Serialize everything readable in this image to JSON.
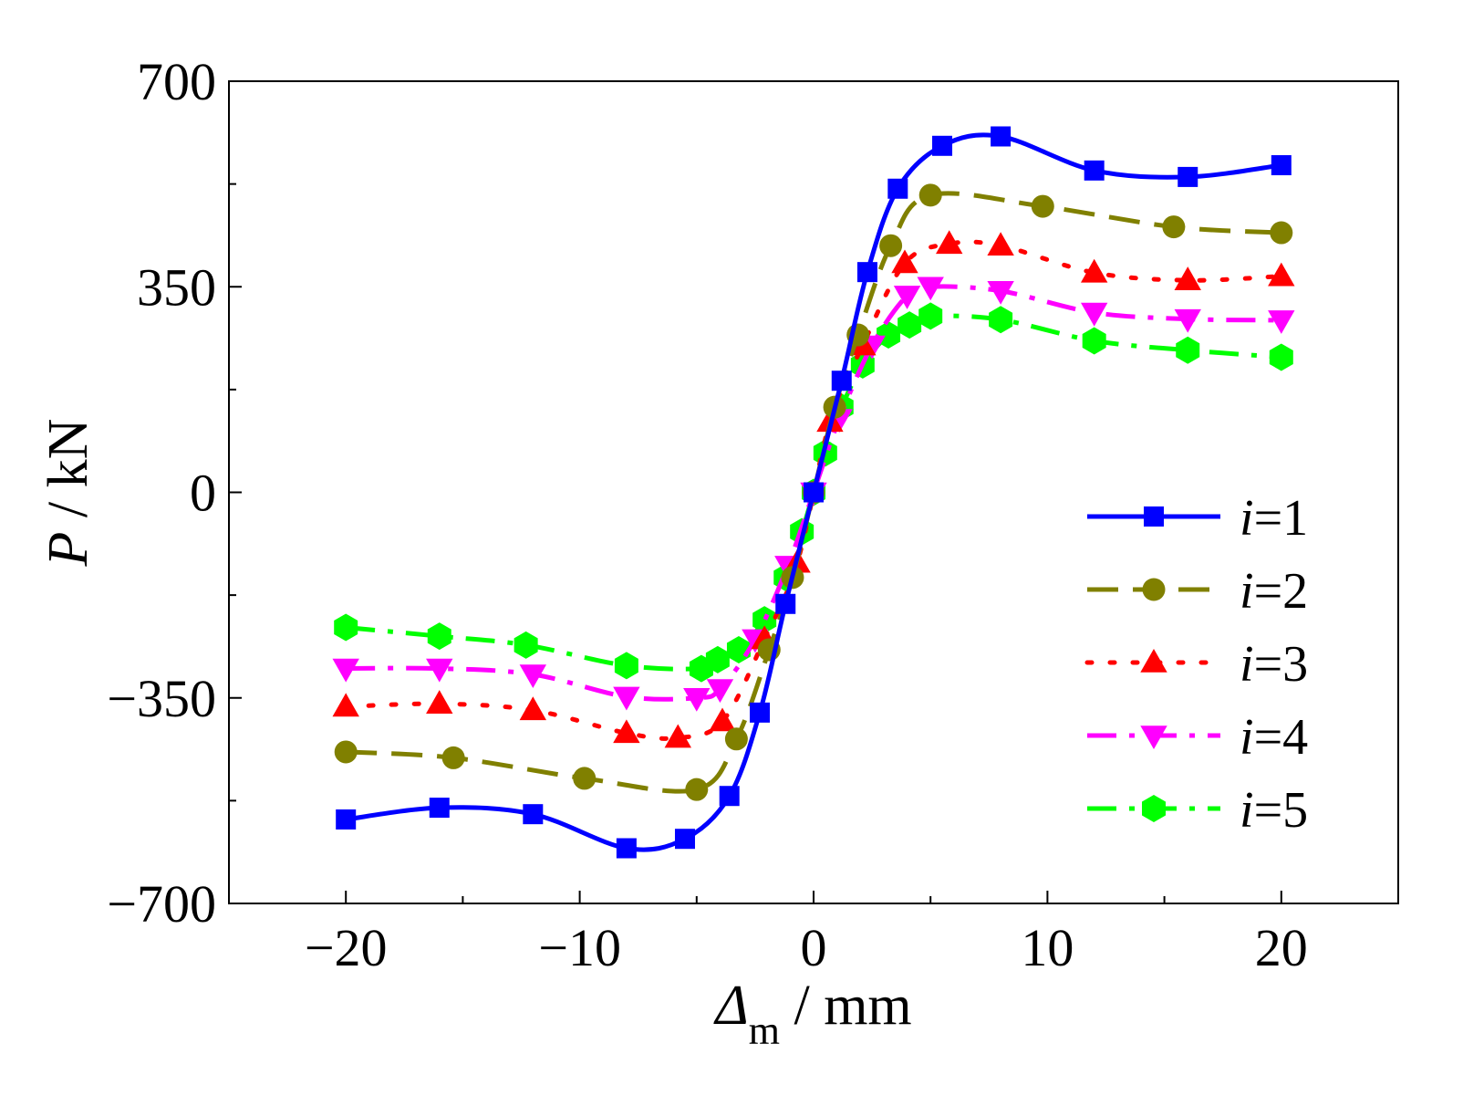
{
  "chart_data": {
    "type": "line",
    "xlabel": "Δm / mm",
    "xlabel_symbol": "Δ",
    "xlabel_subscript": "m",
    "xlabel_unit": " / mm",
    "ylabel": "P / kN",
    "ylabel_symbol": "P",
    "ylabel_unit": " / kN",
    "xlim": [
      -25,
      25
    ],
    "ylim": [
      -700,
      700
    ],
    "xticks": [
      -20,
      -10,
      0,
      10,
      20
    ],
    "xtick_labels": [
      "−20",
      "−10",
      "0",
      "10",
      "20"
    ],
    "yticks": [
      -700,
      -350,
      0,
      350,
      700
    ],
    "ytick_labels": [
      "−700",
      "−350",
      "0",
      "350",
      "700"
    ],
    "legend_position": "lower-right",
    "series": [
      {
        "name": "i=1",
        "legend_var": "i",
        "legend_value": "=1",
        "color": "#0000ff",
        "marker": "square",
        "line": "solid",
        "x": [
          -20,
          -16,
          -12,
          -8,
          -5.5,
          -3.6,
          -2.3,
          -1.2,
          0,
          1.2,
          2.3,
          3.6,
          5.5,
          8,
          12,
          16,
          20
        ],
        "y": [
          -557,
          -537,
          -548,
          -606,
          -590,
          -517,
          -375,
          -190,
          0,
          190,
          375,
          517,
          590,
          606,
          548,
          537,
          557
        ]
      },
      {
        "name": "i=2",
        "legend_var": "i",
        "legend_value": "=2",
        "color": "#808000",
        "marker": "circle",
        "line": "dashed",
        "x": [
          -20,
          -15.4,
          -9.8,
          -5,
          -3.3,
          -1.9,
          -0.9,
          0,
          0.9,
          1.9,
          3.3,
          5,
          9.8,
          15.4,
          20
        ],
        "y": [
          -442,
          -452,
          -487,
          -506,
          -420,
          -268,
          -145,
          0,
          145,
          268,
          420,
          506,
          487,
          452,
          442
        ]
      },
      {
        "name": "i=3",
        "legend_var": "i",
        "legend_value": "=3",
        "color": "#ff0000",
        "marker": "triangle-up",
        "line": "dotted",
        "x": [
          -20,
          -16,
          -12,
          -8,
          -5.8,
          -3.9,
          -2.1,
          -0.7,
          0.7,
          2.1,
          3.9,
          5.8,
          8,
          12,
          16,
          20
        ],
        "y": [
          -365,
          -360,
          -371,
          -410,
          -418,
          -390,
          -250,
          -120,
          120,
          250,
          390,
          423,
          420,
          374,
          361,
          368
        ]
      },
      {
        "name": "i=4",
        "legend_var": "i",
        "legend_value": "=4",
        "color": "#ff00ff",
        "marker": "triangle-down",
        "line": "dash-dot",
        "x": [
          -20,
          -16,
          -12,
          -8,
          -5,
          -4,
          -2.5,
          -1.1,
          0,
          1.1,
          2.5,
          4,
          5,
          8,
          12,
          16,
          20
        ],
        "y": [
          -300,
          -300,
          -310,
          -348,
          -350,
          -335,
          -250,
          -125,
          0,
          125,
          250,
          335,
          350,
          343,
          306,
          295,
          293
        ]
      },
      {
        "name": "i=5",
        "legend_var": "i",
        "legend_value": "=5",
        "color": "#00ff00",
        "marker": "hexagon",
        "line": "dash-dot",
        "x": [
          -20,
          -16,
          -12.3,
          -8,
          -4.8,
          -4.1,
          -3.2,
          -2.1,
          -1.2,
          -0.5,
          0,
          0.5,
          1.2,
          2.1,
          3.2,
          4.1,
          5,
          8,
          12,
          16,
          20
        ],
        "y": [
          -230,
          -245,
          -260,
          -295,
          -300,
          -285,
          -268,
          -217,
          -145,
          -67,
          0,
          67,
          145,
          217,
          268,
          285,
          300,
          294,
          258,
          242,
          230
        ]
      }
    ]
  }
}
